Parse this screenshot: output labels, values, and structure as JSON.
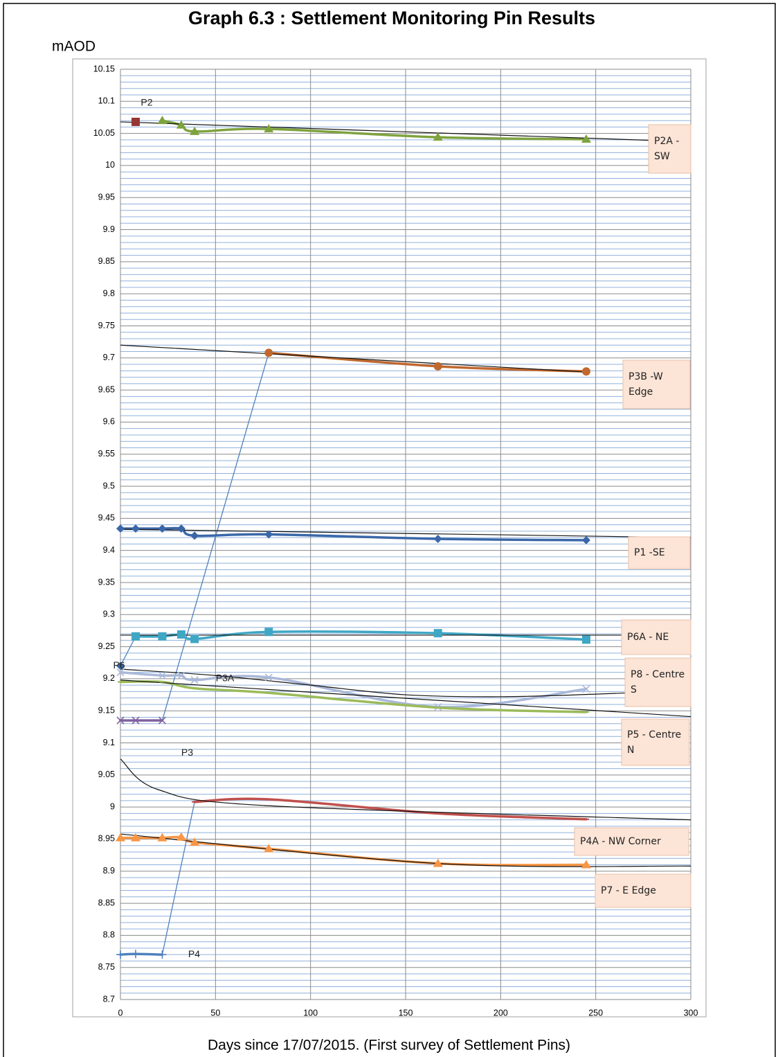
{
  "chart_data": {
    "type": "line",
    "title": "Graph 6.3 : Settlement Monitoring Pin Results",
    "y_label": "mAOD",
    "x_label": "Days since 17/07/2015. (First survey of Settlement Pins)",
    "xlim": [
      0,
      300
    ],
    "xticks": [
      0,
      50,
      100,
      150,
      200,
      250,
      300
    ],
    "ylim": [
      8.7,
      10.15
    ],
    "yticks": [
      8.7,
      8.75,
      8.8,
      8.85,
      8.9,
      8.95,
      9,
      9.05,
      9.1,
      9.15,
      9.2,
      9.25,
      9.3,
      9.35,
      9.4,
      9.45,
      9.5,
      9.55,
      9.6,
      9.65,
      9.7,
      9.75,
      9.8,
      9.85,
      9.9,
      9.95,
      10,
      10.05,
      10.1,
      10.15
    ],
    "grid": true,
    "minor_grid": true,
    "series": [
      {
        "name": "P1 -SE",
        "color": "#3a67a8",
        "marker": "diamond",
        "label_style": "box",
        "x": [
          0,
          8,
          22,
          32,
          39,
          78,
          167,
          245
        ],
        "values": [
          9.434,
          9.434,
          9.434,
          9.434,
          9.423,
          9.425,
          9.418,
          9.416
        ],
        "trend": {
          "x": [
            0,
            300
          ],
          "values": [
            9.433,
            9.42
          ]
        }
      },
      {
        "name": "P2A -SW",
        "color": "#7ea33e",
        "marker": "triangle",
        "label_style": "box",
        "x": [
          22,
          32,
          39,
          78,
          167,
          245
        ],
        "values": [
          10.07,
          10.063,
          10.053,
          10.057,
          10.044,
          10.041
        ],
        "trend": {
          "x": [
            0,
            300
          ],
          "values": [
            10.068,
            10.037
          ]
        }
      },
      {
        "name": "P3B -W Edge",
        "color": "#c0682e",
        "marker": "circle",
        "label_style": "box",
        "x": [
          78,
          167,
          245
        ],
        "values": [
          9.708,
          9.687,
          9.679
        ],
        "trend": {
          "x": [
            0,
            245
          ],
          "values": [
            9.72,
            9.678
          ]
        }
      },
      {
        "name": "P6A - NE",
        "color": "#3fa7c4",
        "marker": "square",
        "label_style": "box",
        "x": [
          8,
          22,
          32,
          39,
          78,
          167,
          245
        ],
        "values": [
          9.266,
          9.266,
          9.269,
          9.262,
          9.273,
          9.271,
          9.261
        ],
        "trend": {
          "x": [
            0,
            300
          ],
          "values": [
            9.268,
            9.268
          ]
        }
      },
      {
        "name": "P8 - Centre S",
        "color": "#aab8d8",
        "marker": "x",
        "label_style": "box",
        "x": [
          0,
          22,
          32,
          39,
          78,
          167,
          245
        ],
        "values": [
          9.21,
          9.205,
          9.205,
          9.198,
          9.202,
          9.156,
          9.184
        ],
        "trend": {
          "x": [
            0,
            50,
            100,
            150,
            200,
            250,
            300
          ],
          "values": [
            9.215,
            9.205,
            9.19,
            9.175,
            9.172,
            9.176,
            9.182
          ]
        }
      },
      {
        "name": "P5 - Centre N",
        "color": "#9bbb59",
        "marker": "dash",
        "label_style": "box",
        "x": [
          0,
          22,
          39,
          78,
          167,
          245
        ],
        "values": [
          9.195,
          9.195,
          9.185,
          9.178,
          9.155,
          9.148
        ],
        "trend": {
          "x": [
            0,
            300
          ],
          "values": [
            9.198,
            9.141
          ]
        }
      },
      {
        "name": "P4A - NW Corner",
        "color": "#c0504d",
        "marker": "dash",
        "label_style": "box",
        "x": [
          39,
          78,
          167,
          245
        ],
        "values": [
          9.008,
          9.012,
          8.99,
          8.981
        ],
        "trend": {
          "x": [
            0,
            20,
            78,
            300
          ],
          "values": [
            9.075,
            9.027,
            9.002,
            8.98
          ]
        }
      },
      {
        "name": "P7 - E Edge",
        "color": "#f79646",
        "marker": "triangle",
        "label_style": "box",
        "x": [
          0,
          8,
          22,
          32,
          39,
          78,
          167,
          245
        ],
        "values": [
          8.952,
          8.952,
          8.952,
          8.953,
          8.945,
          8.935,
          8.912,
          8.91
        ],
        "trend": {
          "x": [
            0,
            167,
            300
          ],
          "values": [
            8.958,
            8.912,
            8.908
          ]
        }
      },
      {
        "name": "P2",
        "color": "#953735",
        "marker": "square",
        "label_style": "point",
        "x": [
          8
        ],
        "values": [
          10.068
        ]
      },
      {
        "name": "P3",
        "color": "#7f62a0",
        "marker": "x",
        "label_style": "point",
        "x": [
          0,
          8,
          22
        ],
        "values": [
          9.135,
          9.135,
          9.135
        ]
      },
      {
        "name": "P4",
        "color": "#4f81bd",
        "marker": "plus",
        "label_style": "point",
        "x": [
          0,
          8,
          22
        ],
        "values": [
          8.77,
          8.771,
          8.77
        ]
      },
      {
        "name": "P6",
        "color": "#3a67a8",
        "marker": "diamond",
        "label_style": "point",
        "x": [
          0
        ],
        "values": [
          9.22
        ]
      }
    ],
    "connectors": [
      {
        "color": "#4f81bd",
        "x": [
          0,
          8
        ],
        "values": [
          9.22,
          9.266
        ]
      },
      {
        "color": "#4f81bd",
        "x": [
          22,
          78
        ],
        "values": [
          9.135,
          9.708
        ]
      },
      {
        "color": "#4f81bd",
        "x": [
          22,
          39
        ],
        "values": [
          8.77,
          9.008
        ]
      }
    ],
    "annotations": [
      "P3A"
    ]
  }
}
